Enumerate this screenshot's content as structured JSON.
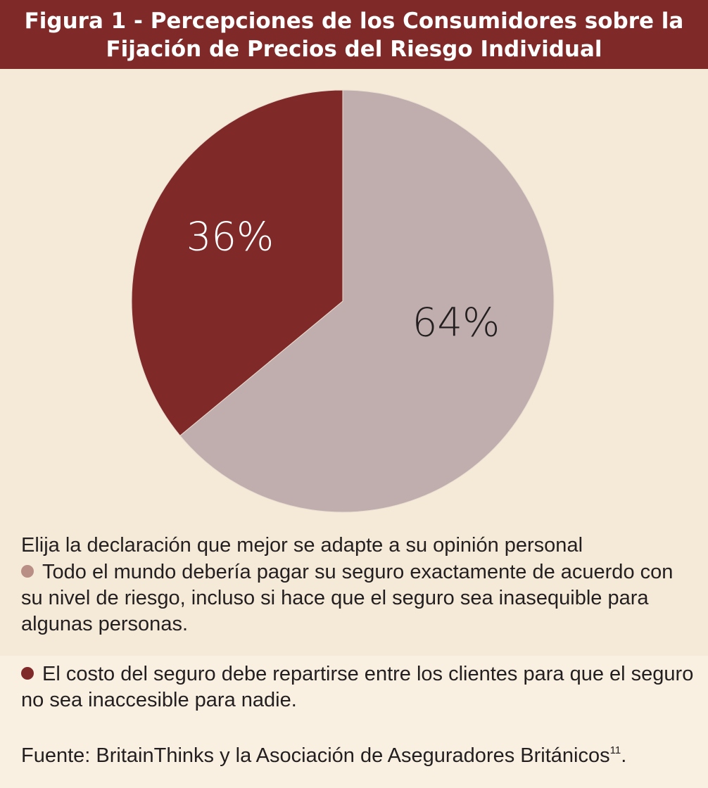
{
  "header": {
    "title_line1": "Figura 1 - Percepciones de los Consumidores sobre la",
    "title_line2": "Fijación de Precios del Riesgo Individual"
  },
  "chart_data": {
    "type": "pie",
    "title": "Figura 1 - Percepciones de los Consumidores sobre la Fijación de Precios del Riesgo Individual",
    "slices": [
      {
        "label": "Todo el mundo debería pagar su seguro exactamente de acuerdo con su nivel de riesgo, incluso si hace que el seguro sea inasequible para algunas personas.",
        "value": 64,
        "value_label": "64%",
        "color": "#c0aeae",
        "label_color": "#231f20"
      },
      {
        "label": "El costo del seguro debe repartirse entre los clientes para que el seguro no sea inaccesible para nadie.",
        "value": 36,
        "value_label": "36%",
        "color": "#7f2a29",
        "label_color": "#ffffff"
      }
    ]
  },
  "legend": {
    "question": "Elija la declaración que mejor se adapte a su opinión personal",
    "items": [
      {
        "text": "Todo el mundo debería pagar su seguro exactamente de acuerdo con su nivel de riesgo, incluso si hace que el seguro sea inasequible para algunas personas.",
        "color": "#b98e84"
      },
      {
        "text": "El costo del seguro debe repartirse entre los clientes para que el seguro no sea inaccesible para nadie.",
        "color": "#7f2a29"
      }
    ]
  },
  "source": {
    "text": "Fuente: BritainThinks y la Asociación de Aseguradores Británicos",
    "footnote": "11",
    "end": "."
  },
  "colors": {
    "header_bg": "#7f2a29",
    "page_bg": "#f7ecd9"
  }
}
